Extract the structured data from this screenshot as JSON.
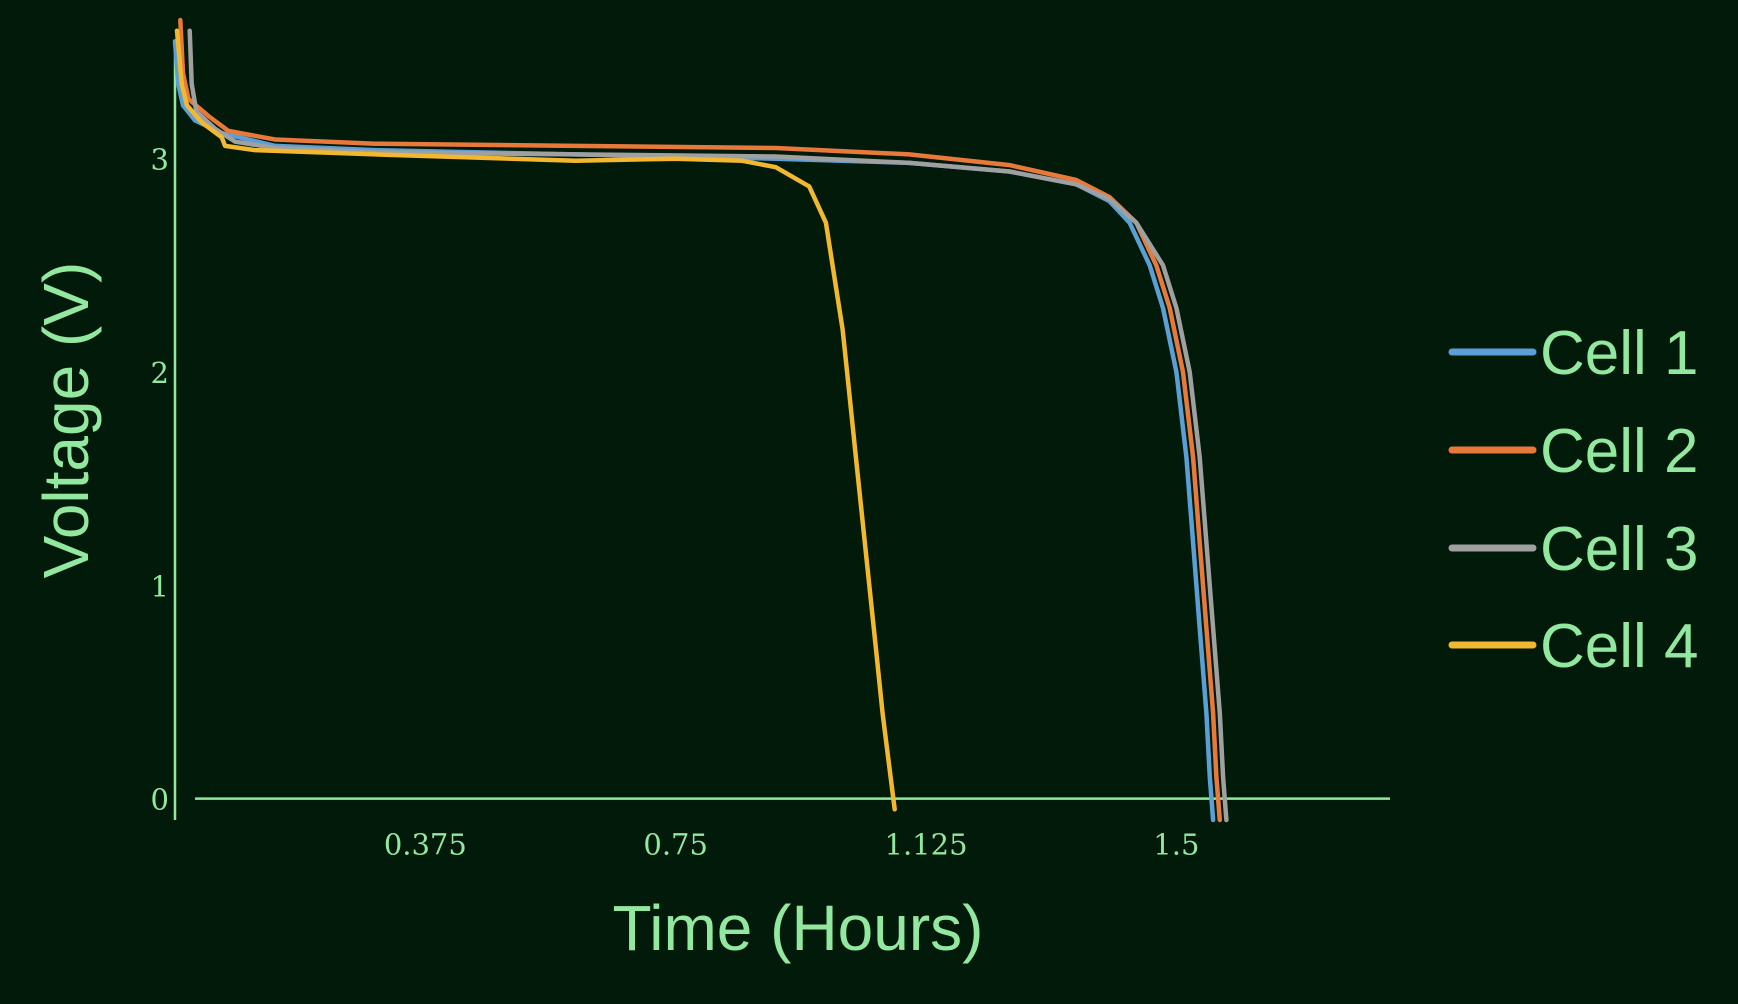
{
  "chart_data": {
    "type": "line",
    "title": "",
    "xlabel": "Time (Hours)",
    "ylabel": "Voltage (V)",
    "xlim": [
      0,
      1.82
    ],
    "ylim": [
      -0.1,
      3.65
    ],
    "x_ticks": [
      0.375,
      0.75,
      1.125,
      1.5
    ],
    "x_tick_labels": [
      "0.375",
      "0.75",
      "1.125",
      "1.5"
    ],
    "y_ticks": [
      0,
      1,
      2,
      3
    ],
    "y_tick_labels": [
      "0",
      "1",
      "2",
      "3"
    ],
    "grid": false,
    "legend_position": "right",
    "series": [
      {
        "name": "Cell 1",
        "color": "#5a9fd6",
        "points": [
          [
            0.0,
            3.55
          ],
          [
            0.005,
            3.35
          ],
          [
            0.012,
            3.25
          ],
          [
            0.03,
            3.18
          ],
          [
            0.07,
            3.12
          ],
          [
            0.15,
            3.06
          ],
          [
            0.3,
            3.04
          ],
          [
            0.6,
            3.02
          ],
          [
            0.9,
            3.0
          ],
          [
            1.1,
            2.98
          ],
          [
            1.25,
            2.94
          ],
          [
            1.35,
            2.88
          ],
          [
            1.4,
            2.8
          ],
          [
            1.43,
            2.7
          ],
          [
            1.46,
            2.5
          ],
          [
            1.48,
            2.3
          ],
          [
            1.5,
            2.0
          ],
          [
            1.515,
            1.6
          ],
          [
            1.525,
            1.2
          ],
          [
            1.535,
            0.8
          ],
          [
            1.545,
            0.4
          ],
          [
            1.55,
            0.1
          ],
          [
            1.555,
            -0.1
          ]
        ]
      },
      {
        "name": "Cell 2",
        "color": "#e8793a",
        "points": [
          [
            0.008,
            3.65
          ],
          [
            0.012,
            3.4
          ],
          [
            0.02,
            3.28
          ],
          [
            0.05,
            3.2
          ],
          [
            0.08,
            3.13
          ],
          [
            0.15,
            3.09
          ],
          [
            0.3,
            3.07
          ],
          [
            0.6,
            3.06
          ],
          [
            0.9,
            3.05
          ],
          [
            1.1,
            3.02
          ],
          [
            1.25,
            2.97
          ],
          [
            1.35,
            2.9
          ],
          [
            1.4,
            2.82
          ],
          [
            1.44,
            2.7
          ],
          [
            1.47,
            2.5
          ],
          [
            1.49,
            2.3
          ],
          [
            1.51,
            2.0
          ],
          [
            1.525,
            1.6
          ],
          [
            1.535,
            1.2
          ],
          [
            1.545,
            0.8
          ],
          [
            1.555,
            0.4
          ],
          [
            1.56,
            0.1
          ],
          [
            1.565,
            -0.1
          ]
        ]
      },
      {
        "name": "Cell 3",
        "color": "#a0a0a0",
        "points": [
          [
            0.022,
            3.6
          ],
          [
            0.025,
            3.35
          ],
          [
            0.032,
            3.22
          ],
          [
            0.06,
            3.14
          ],
          [
            0.09,
            3.08
          ],
          [
            0.15,
            3.05
          ],
          [
            0.3,
            3.03
          ],
          [
            0.6,
            3.02
          ],
          [
            0.9,
            3.01
          ],
          [
            1.1,
            2.98
          ],
          [
            1.25,
            2.94
          ],
          [
            1.35,
            2.88
          ],
          [
            1.4,
            2.81
          ],
          [
            1.44,
            2.7
          ],
          [
            1.48,
            2.5
          ],
          [
            1.5,
            2.3
          ],
          [
            1.52,
            2.0
          ],
          [
            1.535,
            1.6
          ],
          [
            1.545,
            1.2
          ],
          [
            1.555,
            0.8
          ],
          [
            1.565,
            0.4
          ],
          [
            1.57,
            0.1
          ],
          [
            1.575,
            -0.1
          ]
        ]
      },
      {
        "name": "Cell 4",
        "color": "#f2b830",
        "points": [
          [
            0.003,
            3.6
          ],
          [
            0.01,
            3.35
          ],
          [
            0.018,
            3.25
          ],
          [
            0.04,
            3.17
          ],
          [
            0.07,
            3.1
          ],
          [
            0.075,
            3.06
          ],
          [
            0.12,
            3.04
          ],
          [
            0.3,
            3.02
          ],
          [
            0.6,
            2.99
          ],
          [
            0.75,
            3.0
          ],
          [
            0.85,
            2.99
          ],
          [
            0.9,
            2.96
          ],
          [
            0.95,
            2.87
          ],
          [
            0.975,
            2.7
          ],
          [
            0.99,
            2.4
          ],
          [
            1.0,
            2.2
          ],
          [
            1.01,
            1.9
          ],
          [
            1.02,
            1.6
          ],
          [
            1.03,
            1.3
          ],
          [
            1.04,
            1.0
          ],
          [
            1.05,
            0.7
          ],
          [
            1.06,
            0.4
          ],
          [
            1.07,
            0.15
          ],
          [
            1.078,
            -0.05
          ]
        ]
      }
    ]
  }
}
